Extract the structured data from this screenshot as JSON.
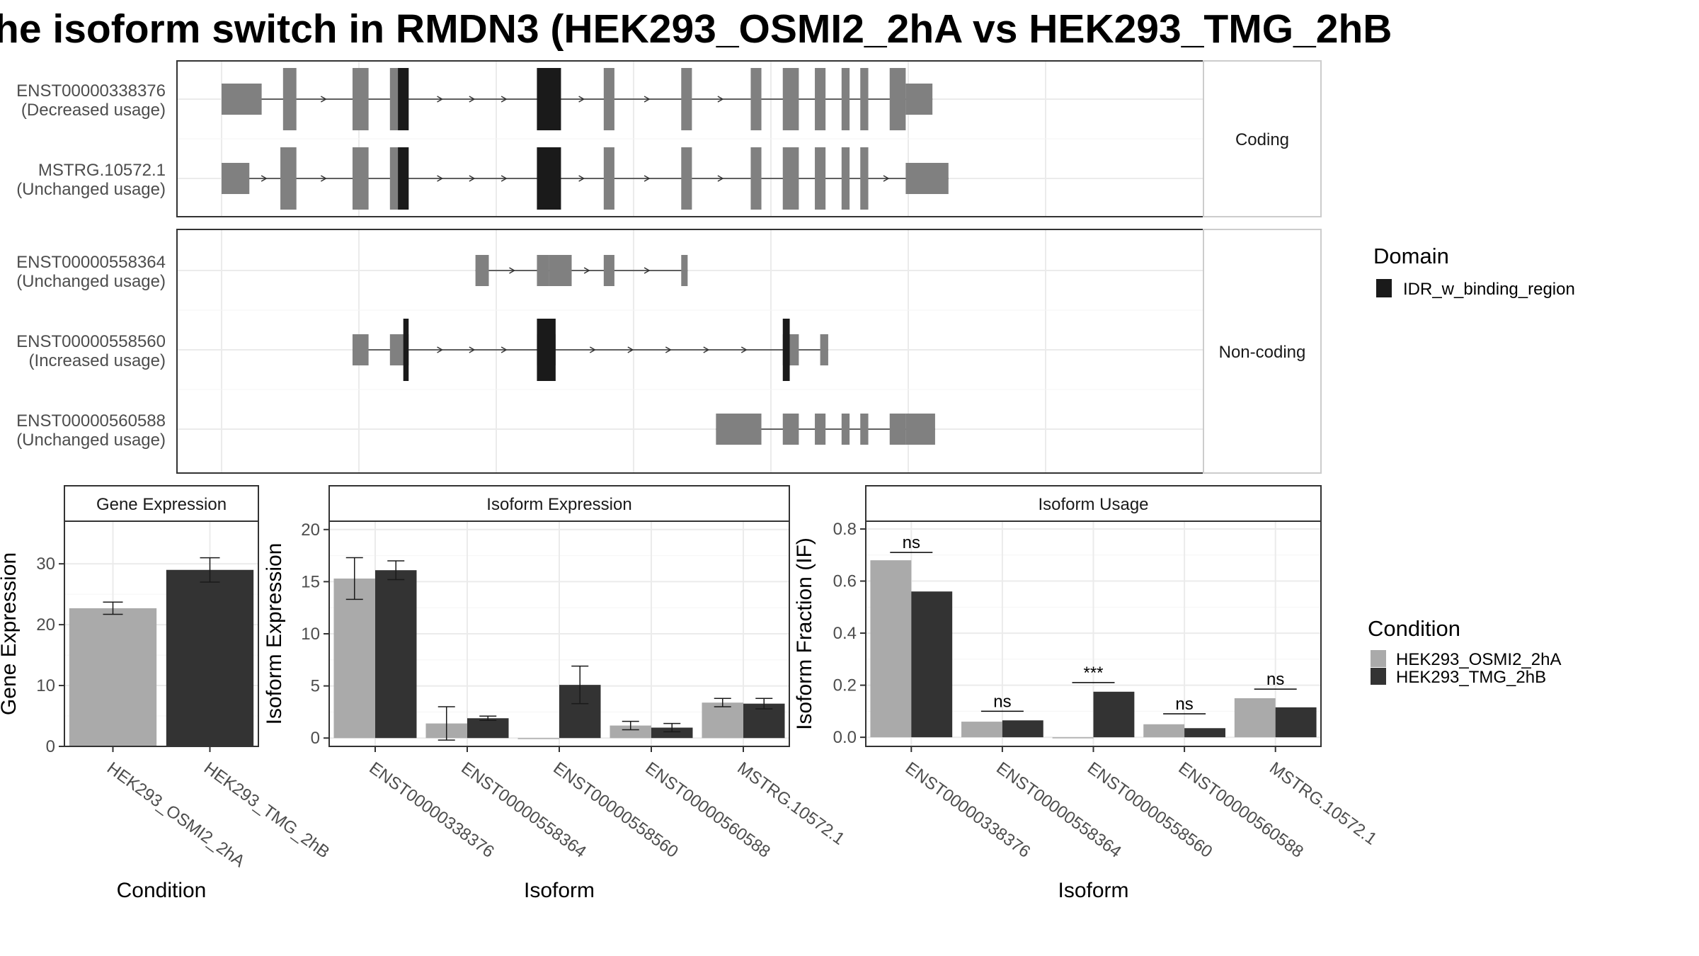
{
  "title": "he isoform switch in RMDN3 (HEK293_OSMI2_2hA vs HEK293_TMG_2hB",
  "colors": {
    "exon": "#808080",
    "domain": "#1a1a1a",
    "cond_a": "#aaaaaa",
    "cond_b": "#333333",
    "grid_major": "#ebebeb",
    "grid_minor": "#f5f5f5",
    "panel_border": "#333333",
    "strip_fill": "#ffffff"
  },
  "transcript_panel": {
    "groups": [
      {
        "label": "Coding",
        "transcripts": [
          {
            "id": "ENST00000338376",
            "usage": "(Decreased usage)",
            "utr": [
              [
                0,
                7.5
              ],
              [
                128,
                133
              ]
            ],
            "cds": [
              [
                11.5,
                14
              ],
              [
                24.5,
                27.5
              ],
              [
                31.5,
                35
              ],
              [
                59,
                63.5
              ],
              [
                71.5,
                73.5
              ],
              [
                86,
                88
              ],
              [
                99,
                101
              ],
              [
                105,
                108
              ],
              [
                111,
                113
              ],
              [
                116,
                117.5
              ],
              [
                119.5,
                121
              ],
              [
                125,
                128
              ]
            ],
            "domains": [
              [
                33,
                35
              ],
              [
                59,
                63.5
              ]
            ],
            "intron": [
              0,
              133
            ]
          },
          {
            "id": "MSTRG.10572.1",
            "usage": "(Unchanged usage)",
            "utr": [
              [
                0,
                5.2
              ],
              [
                128,
                136
              ]
            ],
            "cds": [
              [
                11,
                14
              ],
              [
                24.5,
                27.5
              ],
              [
                31.5,
                35
              ],
              [
                59,
                63.5
              ],
              [
                71.5,
                73.5
              ],
              [
                86,
                88
              ],
              [
                99,
                101
              ],
              [
                105,
                108
              ],
              [
                111,
                113
              ],
              [
                116,
                117.5
              ],
              [
                119.5,
                121
              ]
            ],
            "domains": [
              [
                33,
                35
              ],
              [
                59,
                63.5
              ]
            ],
            "intron": [
              0,
              136
            ]
          }
        ]
      },
      {
        "label": "Non-coding",
        "transcripts": [
          {
            "id": "ENST00000558364",
            "usage": "(Unchanged usage)",
            "utr": [
              [
                47.5,
                50
              ],
              [
                59,
                61.2
              ],
              [
                61.2,
                65.5
              ],
              [
                71.5,
                73.5
              ],
              [
                86,
                87.2
              ]
            ],
            "cds": [],
            "domains": [],
            "intron": [
              47.5,
              87.2
            ]
          },
          {
            "id": "ENST00000558560",
            "usage": "(Increased usage)",
            "utr": [
              [
                24.5,
                27.5
              ],
              [
                31.5,
                35
              ],
              [
                59,
                62.5
              ],
              [
                105,
                108
              ],
              [
                112,
                113.5
              ]
            ],
            "cds": [],
            "domains": [
              [
                34,
                35
              ],
              [
                59,
                62.5
              ],
              [
                105,
                106.3
              ]
            ],
            "intron": [
              24.5,
              113.5
            ]
          },
          {
            "id": "ENST00000560588",
            "usage": "(Unchanged usage)",
            "utr": [
              [
                92.5,
                101
              ],
              [
                105,
                108
              ],
              [
                111,
                113
              ],
              [
                116,
                117.5
              ],
              [
                119.5,
                121
              ],
              [
                125,
                128
              ],
              [
                128,
                133.5
              ]
            ],
            "cds": [],
            "domains": [],
            "intron": [
              92.5,
              133.5
            ]
          }
        ]
      }
    ]
  },
  "legends": {
    "domain_title": "Domain",
    "domain_items": [
      "IDR_w_binding_region"
    ],
    "condition_title": "Condition",
    "condition_items": [
      "HEK293_OSMI2_2hA",
      "HEK293_TMG_2hB"
    ]
  },
  "chart_data": [
    {
      "type": "bar",
      "title": "Gene Expression",
      "xlabel": "Condition",
      "ylabel": "Gene Expression",
      "ylim": [
        0,
        37
      ],
      "yticks": [
        0,
        10,
        20,
        30
      ],
      "categories": [
        "HEK293_OSMI2_2hA",
        "HEK293_TMG_2hB"
      ],
      "values": [
        22.7,
        29.0
      ],
      "errors": [
        1.0,
        2.0
      ]
    },
    {
      "type": "bar",
      "title": "Isoform Expression",
      "xlabel": "Isoform",
      "ylabel": "Isoform Expression",
      "ylim": [
        -0.8,
        20.8
      ],
      "yticks": [
        0,
        5,
        10,
        15,
        20
      ],
      "categories": [
        "ENST00000338376",
        "ENST00000558364",
        "ENST00000558560",
        "ENST00000560588",
        "MSTRG.10572.1"
      ],
      "series": [
        {
          "name": "HEK293_OSMI2_2hA",
          "values": [
            15.3,
            1.4,
            0.0,
            1.2,
            3.4
          ],
          "errors": [
            2.0,
            1.6,
            0.0,
            0.4,
            0.4
          ]
        },
        {
          "name": "HEK293_TMG_2hB",
          "values": [
            16.1,
            1.9,
            5.1,
            1.0,
            3.3
          ],
          "errors": [
            0.9,
            0.2,
            1.8,
            0.4,
            0.5
          ]
        }
      ]
    },
    {
      "type": "bar",
      "title": "Isoform Usage",
      "xlabel": "Isoform",
      "ylabel": "Isoform Fraction (IF)",
      "ylim": [
        -0.035,
        0.83
      ],
      "yticks": [
        0.0,
        0.2,
        0.4,
        0.6,
        0.8
      ],
      "ytick_labels": [
        "0.0",
        "0.2",
        "0.4",
        "0.6",
        "0.8"
      ],
      "categories": [
        "ENST00000338376",
        "ENST00000558364",
        "ENST00000558560",
        "ENST00000560588",
        "MSTRG.10572.1"
      ],
      "series": [
        {
          "name": "HEK293_OSMI2_2hA",
          "values": [
            0.68,
            0.06,
            0.0,
            0.05,
            0.15
          ]
        },
        {
          "name": "HEK293_TMG_2hB",
          "values": [
            0.56,
            0.065,
            0.175,
            0.035,
            0.115
          ]
        }
      ],
      "significance": [
        "ns",
        "ns",
        "***",
        "ns",
        "ns"
      ],
      "significance_y": [
        0.71,
        0.1,
        0.21,
        0.09,
        0.185
      ]
    }
  ]
}
